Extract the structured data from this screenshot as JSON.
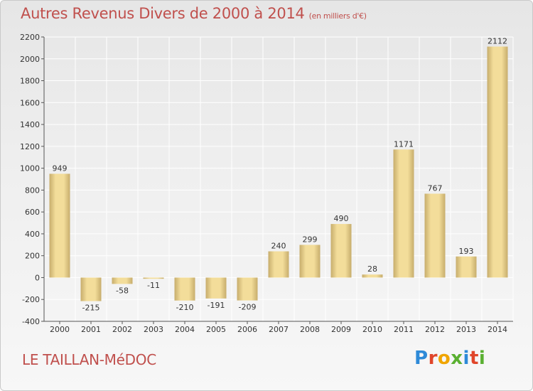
{
  "header": {
    "title": "Autres Revenus Divers de 2000 à 2014",
    "subtitle": "(en milliers d'€)"
  },
  "footer": {
    "commune": "LE TAILLAN-MéDOC",
    "logo_text": "Proxiti",
    "logo_colors": [
      "#2e8ad8",
      "#e0452a",
      "#f0a500",
      "#5ab031",
      "#2e8ad8",
      "#e0452a",
      "#5ab031"
    ]
  },
  "colors": {
    "title": "#c0504d",
    "bar_light": "#f3dd9a",
    "bar_dark": "#c7ad6c",
    "grid": "#ffffff"
  },
  "chart_data": {
    "type": "bar",
    "title": "Autres Revenus Divers de 2000 à 2014",
    "subtitle": "(en milliers d'€)",
    "categories": [
      "2000",
      "2001",
      "2002",
      "2003",
      "2004",
      "2005",
      "2006",
      "2007",
      "2008",
      "2009",
      "2010",
      "2011",
      "2012",
      "2013",
      "2014"
    ],
    "values": [
      949,
      -215,
      -58,
      -11,
      -210,
      -191,
      -209,
      240,
      299,
      490,
      28,
      1171,
      767,
      193,
      2112
    ],
    "ylim": [
      -400,
      2200
    ],
    "yticks": [
      -400,
      -200,
      0,
      200,
      400,
      600,
      800,
      1000,
      1200,
      1400,
      1600,
      1800,
      2000,
      2200
    ],
    "grid": true,
    "legend": "none"
  }
}
